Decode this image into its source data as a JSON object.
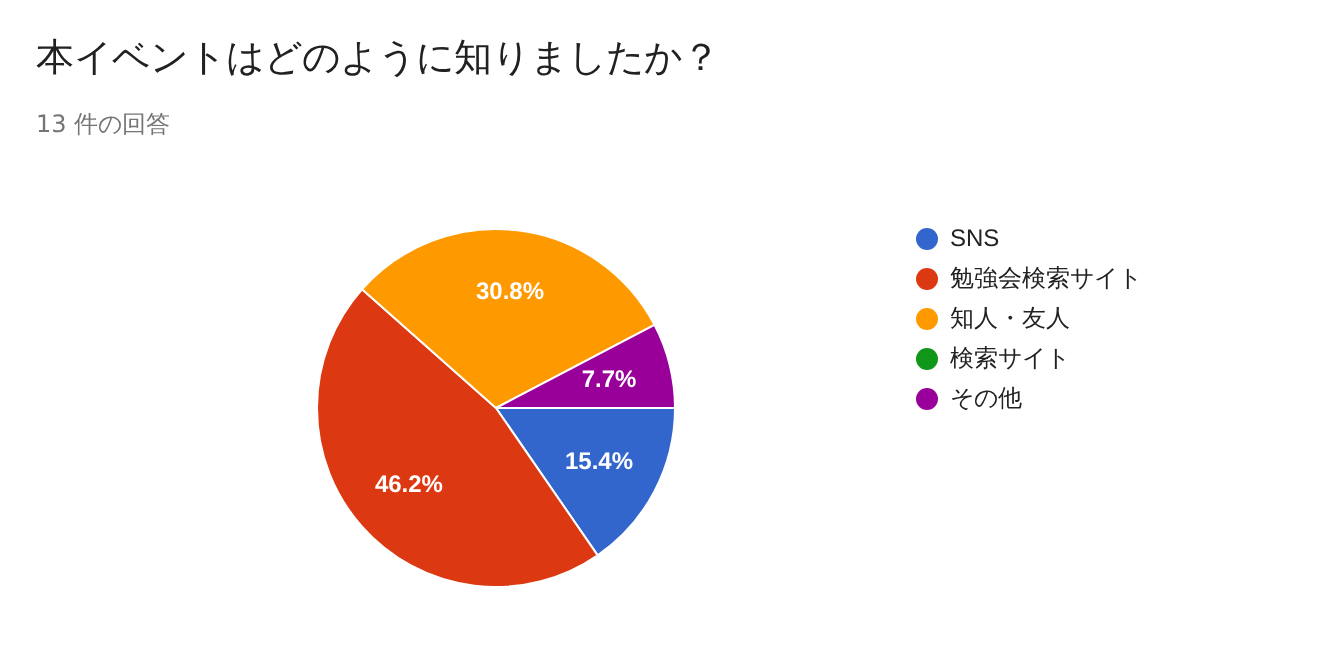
{
  "chart_data": {
    "type": "pie",
    "title": "本イベントはどのように知りましたか？",
    "subtitle": "13 件の回答",
    "categories": [
      "SNS",
      "勉強会検索サイト",
      "知人・友人",
      "検索サイト",
      "その他"
    ],
    "values": [
      15.4,
      46.2,
      30.8,
      0,
      7.7
    ],
    "colors": [
      "#3366cc",
      "#dc3912",
      "#ff9900",
      "#109618",
      "#990099"
    ],
    "value_labels": [
      "15.4%",
      "46.2%",
      "30.8%",
      null,
      "7.7%"
    ],
    "legend": "right"
  }
}
